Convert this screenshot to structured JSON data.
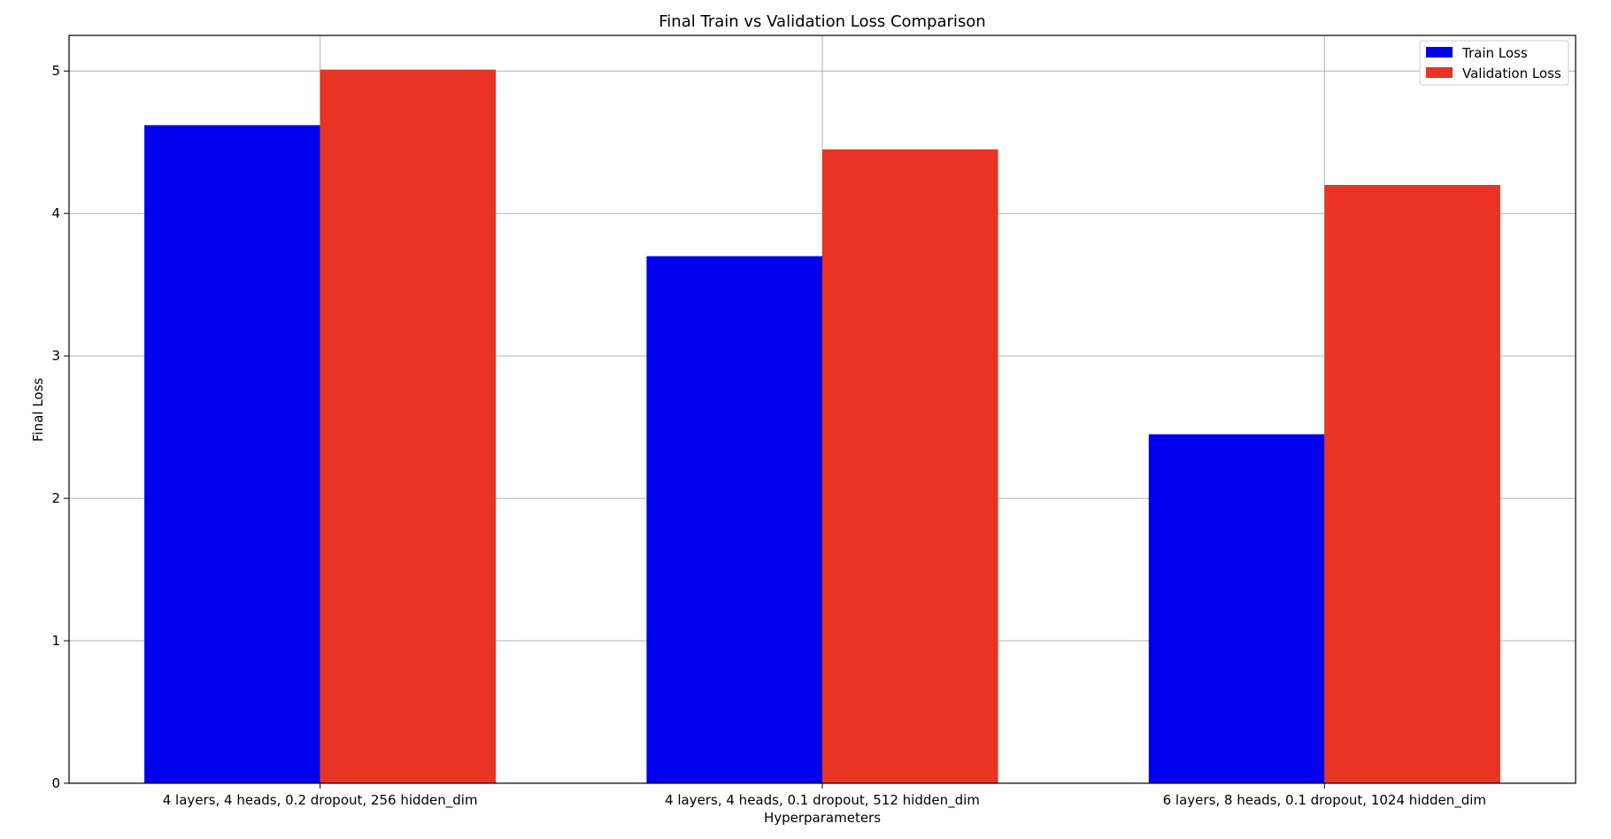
{
  "chart_data": {
    "type": "bar",
    "title": "Final Train vs Validation Loss Comparison",
    "xlabel": "Hyperparameters",
    "ylabel": "Final Loss",
    "categories": [
      "4 layers, 4 heads, 0.2 dropout, 256 hidden_dim",
      "4 layers, 4 heads, 0.1 dropout, 512 hidden_dim",
      "6 layers, 8 heads, 0.1 dropout, 1024 hidden_dim"
    ],
    "series": [
      {
        "name": "Train Loss",
        "color": "#0000ee",
        "values": [
          4.62,
          3.7,
          2.45
        ]
      },
      {
        "name": "Validation Loss",
        "color": "#e93323",
        "values": [
          5.01,
          4.45,
          4.2
        ]
      }
    ],
    "ylim": [
      0,
      5.25
    ],
    "yticks": [
      0,
      1,
      2,
      3,
      4,
      5
    ],
    "grid": true,
    "legend": "top-right"
  }
}
